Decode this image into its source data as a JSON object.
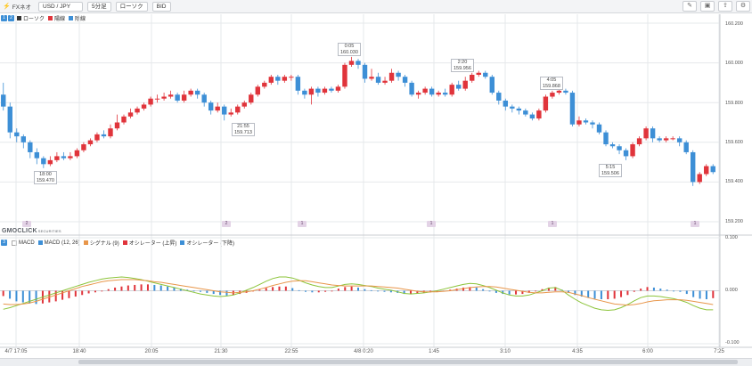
{
  "toolbar": {
    "app_name": "FXネオ",
    "pair": "USD / JPY",
    "timeframe": "5分足",
    "chart_style": "ローソク",
    "price_side": "BID"
  },
  "legend_main": {
    "badges": [
      "1",
      "2"
    ],
    "items": [
      {
        "label": "ローソク",
        "color": "#333333"
      },
      {
        "label": "陽線",
        "color": "#e0343b"
      },
      {
        "label": "陰線",
        "color": "#3d8fd6"
      }
    ]
  },
  "legend_macd": {
    "badge": "3",
    "items": [
      {
        "label": "MACD",
        "color": "#ffffff"
      },
      {
        "label": "MACD (12, 26)",
        "color": "#3d8fd6"
      },
      {
        "label": "シグナル (9)",
        "color": "#e08a3c"
      },
      {
        "label": "オシレーター (上昇)",
        "color": "#e0343b"
      },
      {
        "label": "オシレーター (下降)",
        "color": "#3d8fd6"
      }
    ]
  },
  "colors": {
    "up": "#e0343b",
    "down": "#3d8fd6",
    "macd": "#8cc43a",
    "signal": "#e8964a",
    "grid": "#e6e8eb"
  },
  "price_axis": [
    "160.200",
    "160.000",
    "159.800",
    "159.600",
    "159.400",
    "159.200"
  ],
  "macd_axis": [
    "0.100",
    "0.000",
    "-0.100"
  ],
  "time_axis": [
    "4/7 17:05",
    "18:40",
    "20:05",
    "21:30",
    "22:55",
    "4/8 0:20",
    "1:45",
    "3:10",
    "4:35",
    "6:00",
    "7:25"
  ],
  "annotations": [
    {
      "time": "18:00",
      "price": "159.470"
    },
    {
      "time": "21:55",
      "price": "159.713"
    },
    {
      "time": "0:05",
      "price": "160.030"
    },
    {
      "time": "2:20",
      "price": "159.956"
    },
    {
      "time": "4:05",
      "price": "159.868"
    },
    {
      "time": "5:15",
      "price": "159.506"
    }
  ],
  "markers": [
    "2",
    "2",
    "1",
    "1",
    "1",
    "1"
  ],
  "brand_logo": "GMOCLICK",
  "brand_logo_small": "SECURITIES",
  "chart_data": [
    {
      "type": "candlestick",
      "ylim": [
        159.2,
        160.2
      ],
      "candles": [
        [
          159.84,
          159.78,
          159.9,
          159.76
        ],
        [
          159.78,
          159.65,
          159.8,
          159.62
        ],
        [
          159.65,
          159.63,
          159.67,
          159.6
        ],
        [
          159.63,
          159.6,
          159.64,
          159.57
        ],
        [
          159.6,
          159.55,
          159.61,
          159.52
        ],
        [
          159.55,
          159.52,
          159.57,
          159.49
        ],
        [
          159.52,
          159.49,
          159.53,
          159.47
        ],
        [
          159.49,
          159.51,
          159.53,
          159.48
        ],
        [
          159.51,
          159.53,
          159.55,
          159.5
        ],
        [
          159.53,
          159.52,
          159.55,
          159.51
        ],
        [
          159.52,
          159.53,
          159.55,
          159.51
        ],
        [
          159.53,
          159.56,
          159.57,
          159.52
        ],
        [
          159.56,
          159.59,
          159.6,
          159.55
        ],
        [
          159.59,
          159.61,
          159.62,
          159.58
        ],
        [
          159.61,
          159.64,
          159.65,
          159.6
        ],
        [
          159.64,
          159.63,
          159.66,
          159.62
        ],
        [
          159.63,
          159.67,
          159.69,
          159.62
        ],
        [
          159.67,
          159.7,
          159.74,
          159.66
        ],
        [
          159.7,
          159.73,
          159.74,
          159.69
        ],
        [
          159.73,
          159.75,
          159.77,
          159.72
        ],
        [
          159.75,
          159.77,
          159.78,
          159.74
        ],
        [
          159.77,
          159.79,
          159.8,
          159.76
        ],
        [
          159.79,
          159.82,
          159.83,
          159.78
        ],
        [
          159.82,
          159.82,
          159.84,
          159.8
        ],
        [
          159.82,
          159.83,
          159.85,
          159.81
        ],
        [
          159.83,
          159.84,
          159.86,
          159.82
        ],
        [
          159.84,
          159.81,
          159.85,
          159.8
        ],
        [
          159.81,
          159.84,
          159.86,
          159.8
        ],
        [
          159.84,
          159.86,
          159.87,
          159.83
        ],
        [
          159.86,
          159.84,
          159.87,
          159.82
        ],
        [
          159.84,
          159.8,
          159.85,
          159.78
        ],
        [
          159.8,
          159.76,
          159.81,
          159.74
        ],
        [
          159.76,
          159.78,
          159.8,
          159.75
        ],
        [
          159.78,
          159.74,
          159.79,
          159.71
        ],
        [
          159.74,
          159.75,
          159.77,
          159.73
        ],
        [
          159.75,
          159.78,
          159.79,
          159.74
        ],
        [
          159.78,
          159.8,
          159.81,
          159.77
        ],
        [
          159.8,
          159.84,
          159.85,
          159.79
        ],
        [
          159.84,
          159.88,
          159.89,
          159.83
        ],
        [
          159.88,
          159.9,
          159.91,
          159.87
        ],
        [
          159.9,
          159.93,
          159.94,
          159.89
        ],
        [
          159.93,
          159.91,
          159.94,
          159.89
        ],
        [
          159.91,
          159.93,
          159.94,
          159.9
        ],
        [
          159.93,
          159.93,
          159.94,
          159.91
        ],
        [
          159.93,
          159.86,
          159.94,
          159.84
        ],
        [
          159.86,
          159.84,
          159.87,
          159.82
        ],
        [
          159.84,
          159.87,
          159.88,
          159.79
        ],
        [
          159.87,
          159.85,
          159.88,
          159.83
        ],
        [
          159.85,
          159.87,
          159.88,
          159.84
        ],
        [
          159.87,
          159.86,
          159.88,
          159.85
        ],
        [
          159.86,
          159.88,
          159.89,
          159.85
        ],
        [
          159.88,
          159.99,
          160.0,
          159.87
        ],
        [
          159.99,
          160.01,
          160.03,
          159.98
        ],
        [
          160.01,
          159.99,
          160.02,
          159.97
        ],
        [
          159.99,
          159.92,
          160.0,
          159.9
        ],
        [
          159.92,
          159.93,
          159.97,
          159.91
        ],
        [
          159.93,
          159.9,
          159.95,
          159.89
        ],
        [
          159.9,
          159.91,
          159.93,
          159.89
        ],
        [
          159.91,
          159.95,
          159.97,
          159.9
        ],
        [
          159.95,
          159.93,
          159.96,
          159.91
        ],
        [
          159.93,
          159.9,
          159.94,
          159.88
        ],
        [
          159.9,
          159.84,
          159.91,
          159.83
        ],
        [
          159.84,
          159.85,
          159.86,
          159.82
        ],
        [
          159.85,
          159.87,
          159.88,
          159.84
        ],
        [
          159.87,
          159.84,
          159.88,
          159.83
        ],
        [
          159.84,
          159.85,
          159.86,
          159.83
        ],
        [
          159.85,
          159.84,
          159.87,
          159.83
        ],
        [
          159.84,
          159.89,
          159.9,
          159.83
        ],
        [
          159.89,
          159.87,
          159.91,
          159.86
        ],
        [
          159.87,
          159.91,
          159.93,
          159.86
        ],
        [
          159.91,
          159.94,
          159.95,
          159.9
        ],
        [
          159.94,
          159.95,
          159.96,
          159.93
        ],
        [
          159.95,
          159.93,
          159.96,
          159.92
        ],
        [
          159.93,
          159.85,
          159.94,
          159.84
        ],
        [
          159.85,
          159.81,
          159.86,
          159.79
        ],
        [
          159.81,
          159.78,
          159.82,
          159.76
        ],
        [
          159.78,
          159.77,
          159.79,
          159.75
        ],
        [
          159.77,
          159.76,
          159.78,
          159.74
        ],
        [
          159.76,
          159.74,
          159.77,
          159.73
        ],
        [
          159.74,
          159.72,
          159.75,
          159.71
        ],
        [
          159.72,
          159.76,
          159.77,
          159.71
        ],
        [
          159.76,
          159.83,
          159.84,
          159.75
        ],
        [
          159.83,
          159.85,
          159.86,
          159.82
        ],
        [
          159.85,
          159.86,
          159.87,
          159.84
        ],
        [
          159.86,
          159.85,
          159.87,
          159.84
        ],
        [
          159.85,
          159.69,
          159.86,
          159.68
        ],
        [
          159.69,
          159.71,
          159.73,
          159.68
        ],
        [
          159.71,
          159.7,
          159.72,
          159.69
        ],
        [
          159.7,
          159.69,
          159.71,
          159.67
        ],
        [
          159.69,
          159.65,
          159.7,
          159.64
        ],
        [
          159.65,
          159.59,
          159.66,
          159.58
        ],
        [
          159.59,
          159.58,
          159.6,
          159.57
        ],
        [
          159.58,
          159.56,
          159.59,
          159.54
        ],
        [
          159.56,
          159.53,
          159.57,
          159.51
        ],
        [
          159.53,
          159.59,
          159.6,
          159.52
        ],
        [
          159.59,
          159.62,
          159.63,
          159.58
        ],
        [
          159.62,
          159.67,
          159.68,
          159.61
        ],
        [
          159.67,
          159.62,
          159.68,
          159.6
        ],
        [
          159.62,
          159.61,
          159.63,
          159.6
        ],
        [
          159.61,
          159.62,
          159.63,
          159.6
        ],
        [
          159.62,
          159.62,
          159.63,
          159.61
        ],
        [
          159.62,
          159.6,
          159.63,
          159.58
        ],
        [
          159.6,
          159.55,
          159.61,
          159.54
        ],
        [
          159.55,
          159.4,
          159.56,
          159.38
        ],
        [
          159.4,
          159.44,
          159.45,
          159.39
        ],
        [
          159.44,
          159.48,
          159.49,
          159.43
        ],
        [
          159.48,
          159.45,
          159.49,
          159.44
        ]
      ]
    },
    {
      "type": "bar+line",
      "ylim": [
        -0.1,
        0.1
      ],
      "oscillator": [
        -0.01,
        -0.015,
        -0.02,
        -0.022,
        -0.024,
        -0.025,
        -0.024,
        -0.022,
        -0.02,
        -0.017,
        -0.014,
        -0.011,
        -0.008,
        -0.005,
        -0.003,
        0.0,
        0.003,
        0.006,
        0.008,
        0.01,
        0.011,
        0.012,
        0.012,
        0.011,
        0.01,
        0.008,
        0.006,
        0.004,
        0.002,
        0.0,
        -0.002,
        -0.004,
        -0.006,
        -0.008,
        -0.009,
        -0.008,
        -0.006,
        -0.004,
        -0.001,
        0.002,
        0.005,
        0.007,
        0.008,
        0.008,
        0.005,
        0.001,
        -0.002,
        -0.003,
        -0.003,
        -0.002,
        0.0,
        0.004,
        0.007,
        0.008,
        0.006,
        0.003,
        0.001,
        -0.001,
        -0.002,
        -0.003,
        -0.004,
        -0.006,
        -0.006,
        -0.005,
        -0.004,
        -0.003,
        -0.002,
        0.0,
        0.002,
        0.004,
        0.006,
        0.007,
        0.006,
        0.003,
        -0.001,
        -0.004,
        -0.006,
        -0.007,
        -0.007,
        -0.006,
        -0.004,
        -0.001,
        0.003,
        0.006,
        0.007,
        0.002,
        -0.004,
        -0.008,
        -0.011,
        -0.013,
        -0.015,
        -0.016,
        -0.016,
        -0.015,
        -0.012,
        -0.008,
        -0.002,
        0.004,
        0.007,
        0.006,
        0.004,
        0.002,
        0.0,
        -0.002,
        -0.006,
        -0.012,
        -0.015,
        -0.016,
        -0.014
      ],
      "macd": [
        -0.035,
        -0.032,
        -0.028,
        -0.024,
        -0.02,
        -0.016,
        -0.012,
        -0.008,
        -0.004,
        0.0,
        0.004,
        0.008,
        0.012,
        0.016,
        0.019,
        0.022,
        0.024,
        0.025,
        0.026,
        0.025,
        0.023,
        0.021,
        0.018,
        0.015,
        0.012,
        0.009,
        0.006,
        0.003,
        0.0,
        -0.003,
        -0.006,
        -0.008,
        -0.01,
        -0.011,
        -0.01,
        -0.008,
        -0.004,
        0.001,
        0.006,
        0.012,
        0.018,
        0.023,
        0.026,
        0.026,
        0.024,
        0.02,
        0.015,
        0.011,
        0.008,
        0.006,
        0.006,
        0.009,
        0.012,
        0.013,
        0.012,
        0.01,
        0.008,
        0.005,
        0.003,
        0.001,
        -0.002,
        -0.005,
        -0.006,
        -0.005,
        -0.004,
        -0.002,
        0.0,
        0.003,
        0.006,
        0.009,
        0.012,
        0.014,
        0.013,
        0.01,
        0.006,
        0.001,
        -0.004,
        -0.008,
        -0.01,
        -0.01,
        -0.008,
        -0.004,
        0.0,
        0.005,
        0.006,
        0.001,
        -0.008,
        -0.016,
        -0.023,
        -0.028,
        -0.033,
        -0.036,
        -0.037,
        -0.036,
        -0.032,
        -0.026,
        -0.019,
        -0.013,
        -0.01,
        -0.01,
        -0.011,
        -0.013,
        -0.015,
        -0.018,
        -0.022,
        -0.028,
        -0.033,
        -0.036,
        -0.036
      ],
      "signal": [
        -0.025,
        -0.026,
        -0.026,
        -0.025,
        -0.023,
        -0.02,
        -0.016,
        -0.012,
        -0.008,
        -0.004,
        0.0,
        0.004,
        0.008,
        0.011,
        0.014,
        0.017,
        0.019,
        0.02,
        0.021,
        0.021,
        0.021,
        0.02,
        0.019,
        0.017,
        0.016,
        0.014,
        0.012,
        0.01,
        0.008,
        0.006,
        0.004,
        0.002,
        0.0,
        -0.002,
        -0.003,
        -0.004,
        -0.003,
        -0.002,
        0.0,
        0.003,
        0.006,
        0.01,
        0.013,
        0.016,
        0.018,
        0.019,
        0.019,
        0.017,
        0.015,
        0.013,
        0.011,
        0.01,
        0.009,
        0.009,
        0.009,
        0.009,
        0.009,
        0.008,
        0.007,
        0.006,
        0.005,
        0.003,
        0.001,
        -0.001,
        -0.002,
        -0.002,
        -0.002,
        -0.001,
        0.0,
        0.002,
        0.004,
        0.006,
        0.007,
        0.008,
        0.008,
        0.007,
        0.005,
        0.003,
        0.001,
        -0.001,
        -0.003,
        -0.004,
        -0.004,
        -0.003,
        -0.002,
        -0.002,
        -0.003,
        -0.006,
        -0.009,
        -0.013,
        -0.016,
        -0.019,
        -0.022,
        -0.025,
        -0.026,
        -0.027,
        -0.026,
        -0.024,
        -0.021,
        -0.019,
        -0.018,
        -0.017,
        -0.017,
        -0.017,
        -0.018,
        -0.02,
        -0.022,
        -0.024,
        -0.026
      ]
    }
  ]
}
